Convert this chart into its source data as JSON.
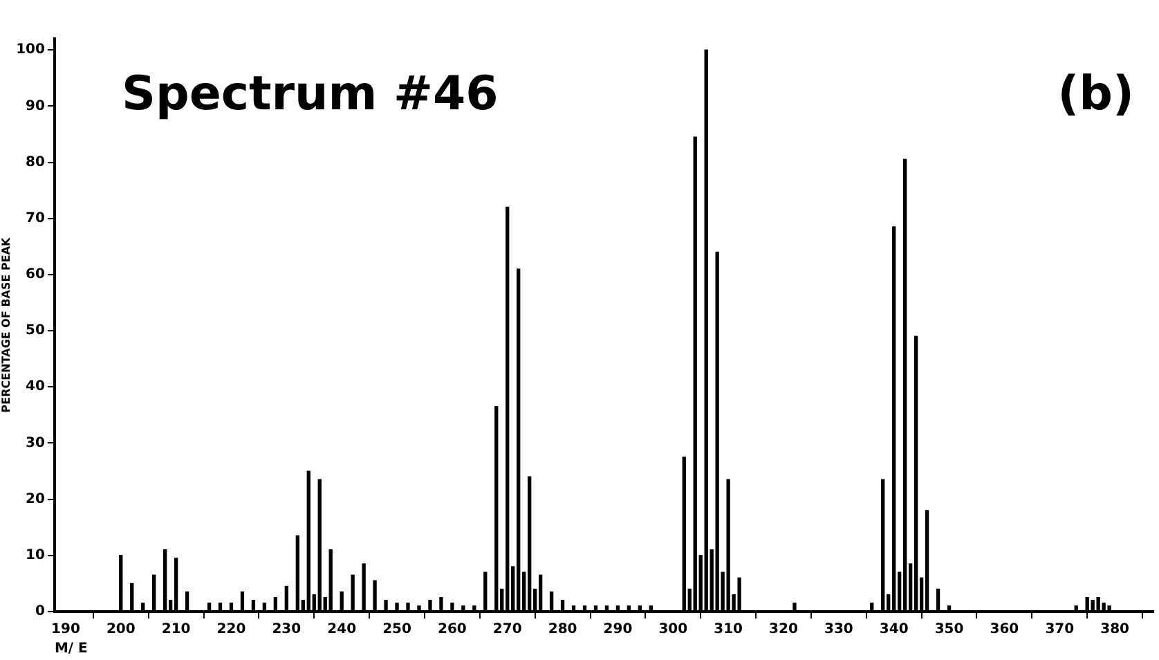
{
  "chart_data": {
    "type": "bar",
    "title": "Spectrum #46",
    "xlabel": "M/ E",
    "ylabel": "PERCENTAGE OF BASE PEAK",
    "annotations": [
      "(b)"
    ],
    "x": [
      200,
      202,
      204,
      206,
      208,
      209,
      210,
      212,
      216,
      218,
      220,
      222,
      224,
      226,
      228,
      230,
      232,
      233,
      234,
      235,
      236,
      237,
      238,
      240,
      242,
      244,
      246,
      248,
      250,
      252,
      254,
      256,
      258,
      260,
      262,
      264,
      266,
      268,
      269,
      270,
      271,
      272,
      273,
      274,
      275,
      276,
      278,
      280,
      282,
      284,
      286,
      288,
      290,
      292,
      294,
      296,
      302,
      303,
      304,
      305,
      306,
      307,
      308,
      309,
      310,
      311,
      312,
      322,
      336,
      338,
      339,
      340,
      341,
      342,
      343,
      344,
      345,
      346,
      348,
      350,
      373,
      375,
      376,
      377,
      378,
      379
    ],
    "values": [
      10,
      5,
      1.5,
      6.5,
      11,
      2,
      9.5,
      3.5,
      1.5,
      1.5,
      1.5,
      3.5,
      2,
      1.5,
      2.5,
      4.5,
      13.5,
      2,
      25,
      3,
      23.5,
      2.5,
      11,
      3.5,
      6.5,
      8.5,
      5.5,
      2,
      1.5,
      1.5,
      1,
      2,
      2.5,
      1.5,
      1,
      1,
      7,
      36.5,
      4,
      72,
      8,
      61,
      7,
      24,
      4,
      6.5,
      3.5,
      2,
      1,
      1,
      1,
      1,
      1,
      1,
      1,
      1,
      27.5,
      4,
      84.5,
      10,
      100,
      11,
      64,
      7,
      23.5,
      3,
      6,
      1.5,
      1.5,
      23.5,
      3,
      68.5,
      7,
      80.5,
      8.5,
      49,
      6,
      18,
      4,
      1,
      1,
      2.5,
      2,
      2.5,
      1.5,
      1
    ],
    "color": "#000000",
    "xlim": [
      188,
      387
    ],
    "xticks": [
      190,
      200,
      210,
      220,
      230,
      240,
      250,
      260,
      270,
      280,
      290,
      300,
      310,
      320,
      330,
      340,
      350,
      360,
      370,
      380
    ],
    "ylim": [
      0,
      102
    ],
    "yticks": [
      0,
      10,
      20,
      30,
      40,
      50,
      60,
      70,
      80,
      90,
      100
    ],
    "grid": false,
    "legend": false
  }
}
